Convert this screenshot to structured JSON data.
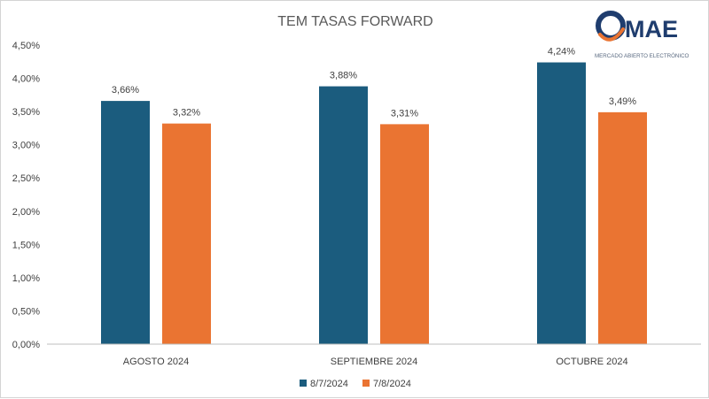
{
  "chart_data": {
    "type": "bar",
    "title": "TEM TASAS FORWARD",
    "xlabel": "",
    "ylabel": "",
    "categories": [
      "AGOSTO 2024",
      "SEPTIEMBRE 2024",
      "OCTUBRE 2024"
    ],
    "series": [
      {
        "name": "8/7/2024",
        "color": "#1b5c7e",
        "values": [
          3.66,
          3.88,
          4.24
        ],
        "labels": [
          "3,66%",
          "3,88%",
          "4,24%"
        ]
      },
      {
        "name": "7/8/2024",
        "color": "#ea7432",
        "values": [
          3.32,
          3.31,
          3.49
        ],
        "labels": [
          "3,32%",
          "3,31%",
          "3,49%"
        ]
      }
    ],
    "ylim": [
      0,
      4.5
    ],
    "yticks": [
      0,
      0.5,
      1.0,
      1.5,
      2.0,
      2.5,
      3.0,
      3.5,
      4.0,
      4.5
    ],
    "ytick_labels": [
      "0,00%",
      "0,50%",
      "1,00%",
      "1,50%",
      "2,00%",
      "2,50%",
      "3,00%",
      "3,50%",
      "4,00%",
      "4,50%"
    ],
    "grid": false,
    "legend": "bottom"
  },
  "logo": {
    "name": "MAE",
    "tagline": "MERCADO ABIERTO ELECTRÓNICO",
    "colors": {
      "dark": "#1f3d6e",
      "accent": "#ea7432"
    }
  },
  "colors": {
    "axis": "#bfbfbf",
    "text": "#404040",
    "title": "#595959"
  }
}
